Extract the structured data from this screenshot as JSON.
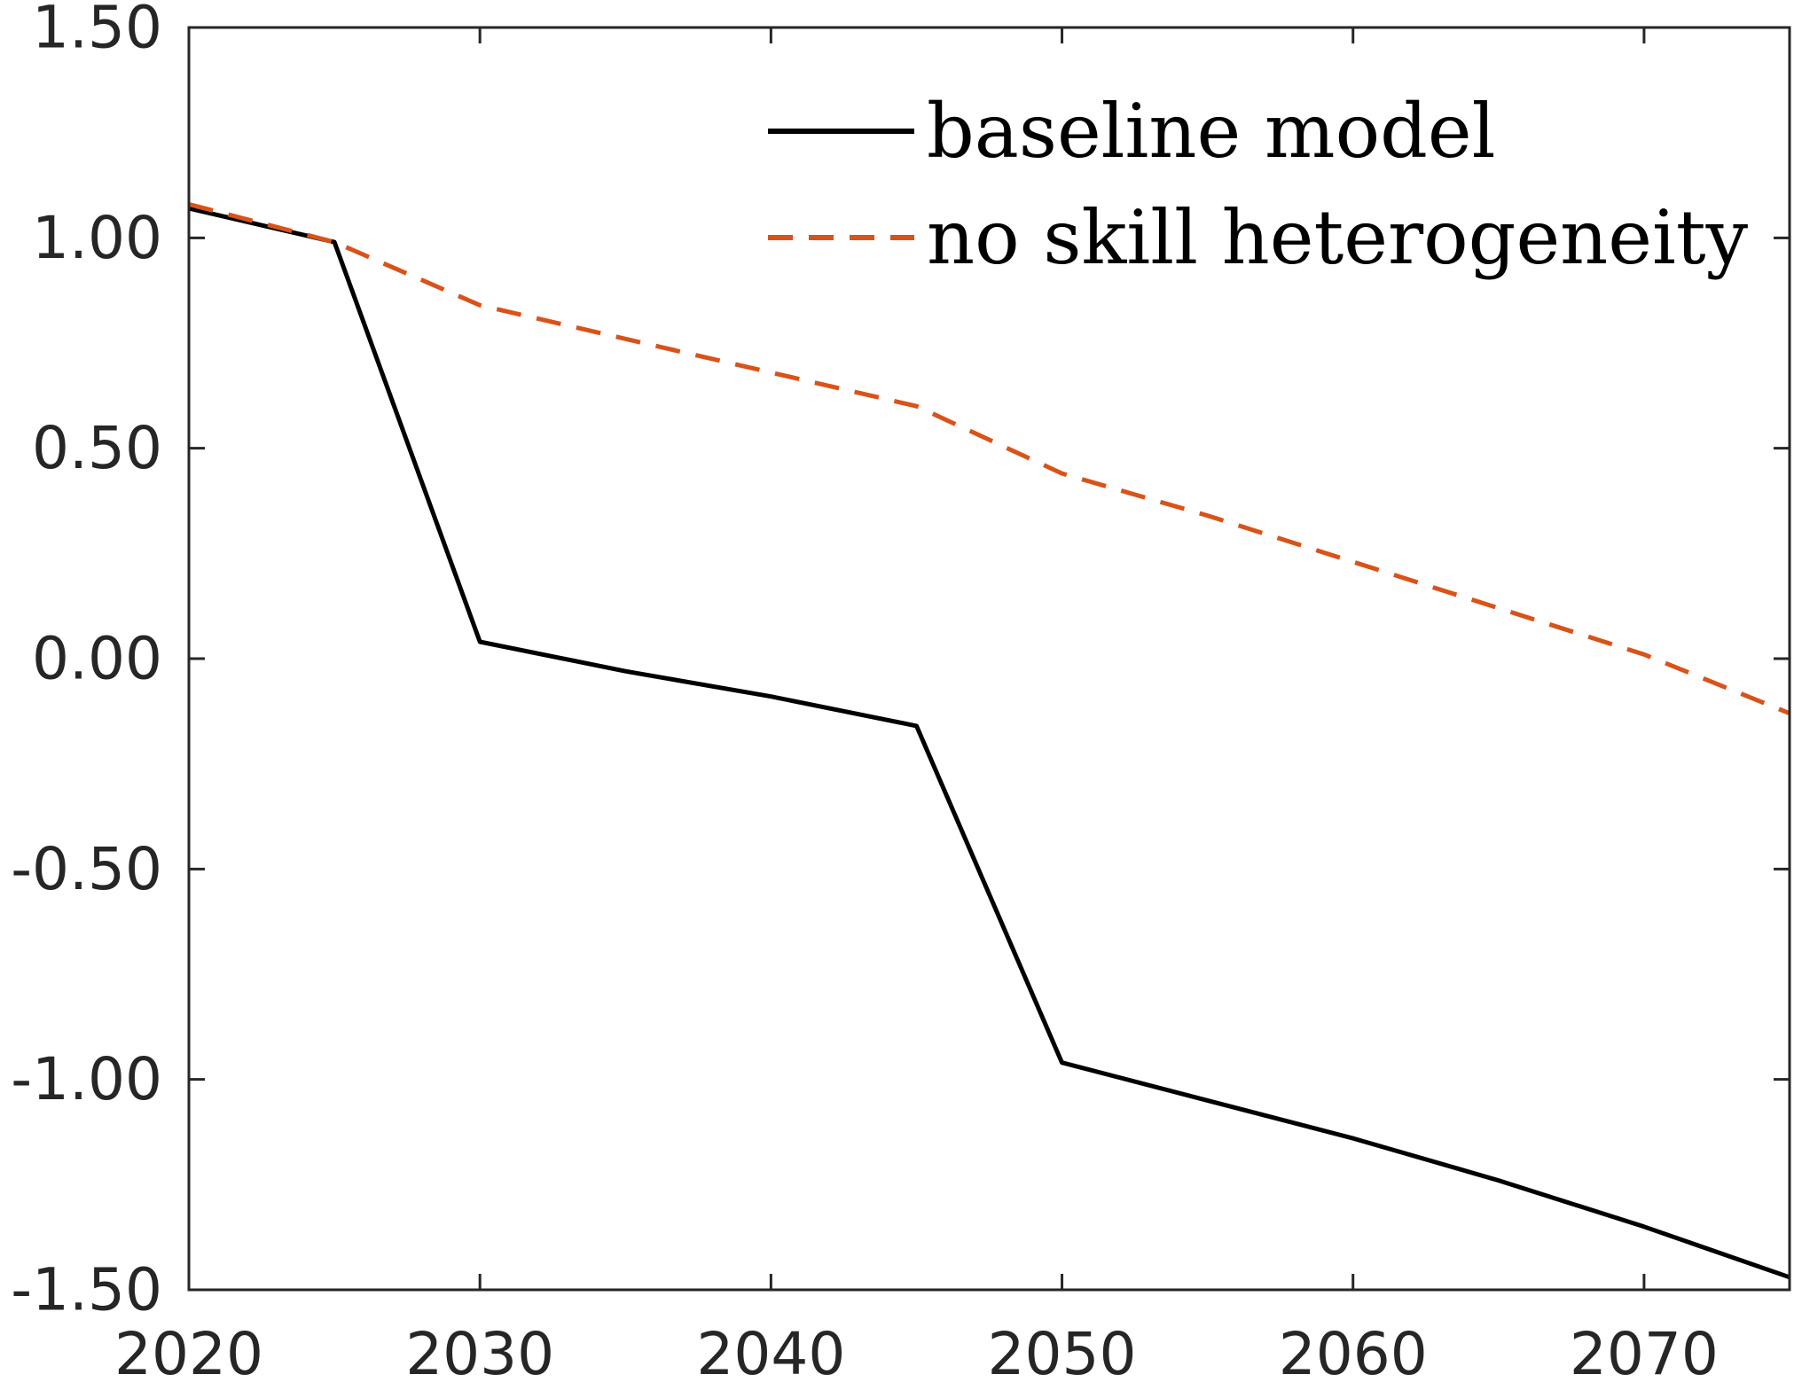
{
  "chart_data": {
    "type": "line",
    "title": "",
    "xlabel": "",
    "ylabel": "",
    "xlim": [
      2020,
      2075
    ],
    "ylim": [
      -1.5,
      1.5
    ],
    "x_ticks": [
      2020,
      2030,
      2040,
      2050,
      2060,
      2070
    ],
    "x_tick_labels": [
      "2020",
      "2030",
      "2040",
      "2050",
      "2060",
      "2070"
    ],
    "y_ticks": [
      -1.5,
      -1.0,
      -0.5,
      0.0,
      0.5,
      1.0,
      1.5
    ],
    "y_tick_labels": [
      "-1.50",
      "-1.00",
      "-0.50",
      "0.00",
      "0.50",
      "1.00",
      "1.50"
    ],
    "grid": false,
    "legend_position": "top-right",
    "x": [
      2020,
      2025,
      2030,
      2035,
      2040,
      2045,
      2050,
      2055,
      2060,
      2065,
      2070,
      2075
    ],
    "series": [
      {
        "name": "baseline model",
        "color": "#000000",
        "style": "solid",
        "values": [
          1.07,
          0.99,
          0.04,
          -0.03,
          -0.09,
          -0.16,
          -0.96,
          -1.05,
          -1.14,
          -1.24,
          -1.35,
          -1.47
        ]
      },
      {
        "name": "no skill heterogeneity",
        "color": "#D95319",
        "style": "dashed",
        "values": [
          1.08,
          0.99,
          0.84,
          0.76,
          0.68,
          0.6,
          0.44,
          0.34,
          0.23,
          0.12,
          0.01,
          -0.13
        ]
      }
    ]
  }
}
